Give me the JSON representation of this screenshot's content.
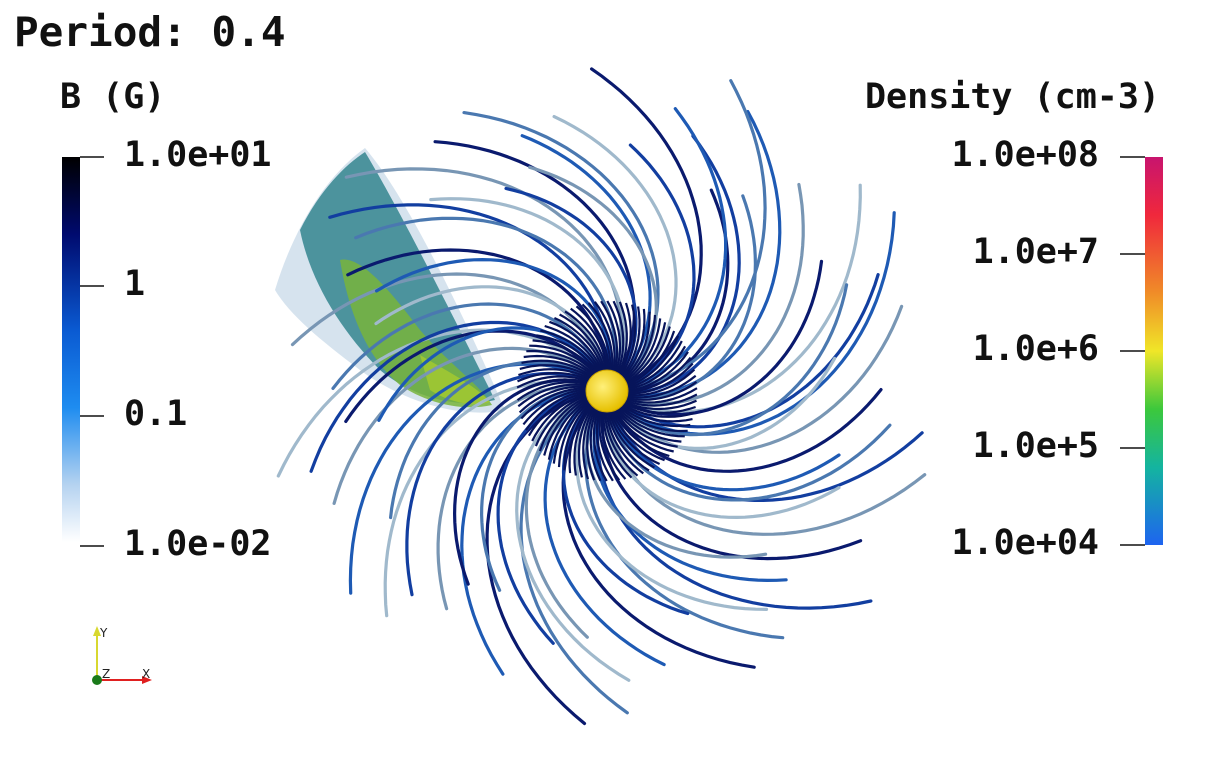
{
  "title": "Period: 0.4",
  "b_colorbar": {
    "title": "B (G)",
    "ticks": [
      "1.0e+01",
      "1",
      "0.1",
      "1.0e-02"
    ],
    "colors": [
      "#000000",
      "#000a6e",
      "#0a5ad2",
      "#1e8cf0",
      "#b4d2f0",
      "#ffffff"
    ]
  },
  "density_colorbar": {
    "title": "Density (cm-3)",
    "ticks": [
      "1.0e+08",
      "1.0e+7",
      "1.0e+6",
      "1.0e+5",
      "1.0e+04"
    ],
    "colors": [
      "#c8146e",
      "#f0283c",
      "#f08c28",
      "#f0e628",
      "#3cc83c",
      "#14b4a0",
      "#1e64f0"
    ]
  },
  "axes_triad": {
    "x": "X",
    "y": "Y",
    "z": "Z"
  },
  "scene": {
    "star_color": "#f0d21e",
    "field_line_colors": [
      "#0a1a6e",
      "#123ea0",
      "#1e5ab4",
      "#4a78b0",
      "#7896b4",
      "#a0b9cc"
    ],
    "wind_colors": [
      "#1e7882",
      "#3c9664",
      "#78b43c",
      "#a0c832"
    ]
  }
}
